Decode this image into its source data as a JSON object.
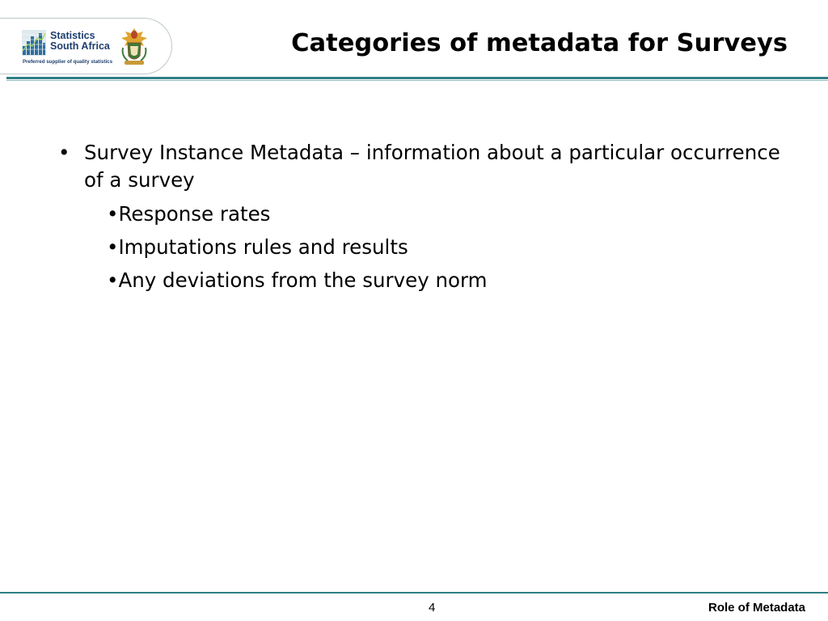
{
  "header": {
    "logo": {
      "brand_line1": "Statistics",
      "brand_line2": "South Africa",
      "tagline": "Preferred supplier of quality statistics",
      "icons": [
        "bar-grid-logo-icon",
        "coat-of-arms-icon"
      ]
    },
    "title": "Categories of metadata for Surveys"
  },
  "body": {
    "bullets": [
      {
        "marker": "•",
        "text": "Survey Instance Metadata – information about a particular occurrence of a survey",
        "sub_items": [
          "•Response rates",
          "•Imputations rules and results",
          "•Any deviations from the survey norm"
        ]
      }
    ]
  },
  "footer": {
    "page_number": "4",
    "label": "Role of Metadata"
  },
  "colors": {
    "accent_teal": "#2f7f86",
    "brand_navy": "#1f3f6e"
  }
}
